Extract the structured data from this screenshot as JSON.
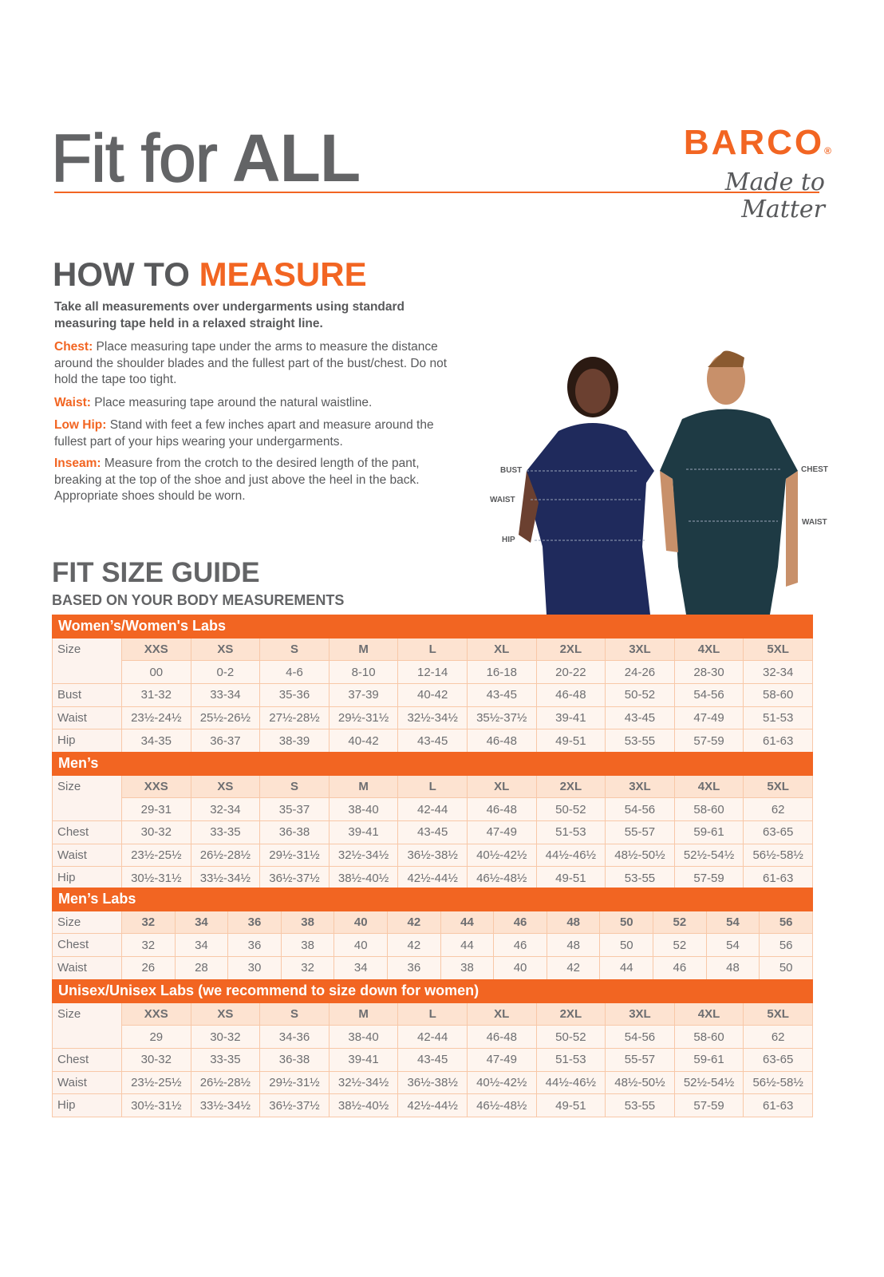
{
  "header": {
    "title_light": "Fit for",
    "title_bold": "ALL",
    "brand": "BARCO",
    "brand_mark": "®",
    "tagline": "Made to Matter"
  },
  "measure": {
    "heading_a": "HOW TO",
    "heading_b": "MEASURE",
    "intro": "Take all measurements over undergarments using standard measuring tape held in a relaxed straight line.",
    "items": [
      {
        "term": "Chest:",
        "text": "Place measuring tape under the arms to measure the distance around the shoulder blades and the fullest part of the bust/chest. Do not hold the tape too tight."
      },
      {
        "term": "Waist:",
        "text": "Place measuring tape around the natural waistline."
      },
      {
        "term": "Low Hip:",
        "text": "Stand with feet a few inches apart and measure around the fullest part of your hips wearing your undergarments."
      },
      {
        "term": "Inseam:",
        "text": "Measure from the crotch to the desired length of the pant, breaking at the top of the shoe and just above the heel in the back. Appropriate shoes should be worn."
      }
    ]
  },
  "figure_labels": {
    "bust": "BUST",
    "waist_w": "WAIST",
    "hip": "HIP",
    "chest": "CHEST",
    "waist_m": "WAIST"
  },
  "guide": {
    "heading": "FIT SIZE GUIDE",
    "subheading": "BASED ON YOUR BODY MEASUREMENTS"
  },
  "colors": {
    "accent": "#f26522",
    "text": "#58595b"
  },
  "tables": [
    {
      "title": "Women’s/Women's Labs",
      "size_label": "Size",
      "sizes": [
        "XXS",
        "XS",
        "S",
        "M",
        "L",
        "XL",
        "2XL",
        "3XL",
        "4XL",
        "5XL"
      ],
      "alt": [
        "00",
        "0-2",
        "4-6",
        "8-10",
        "12-14",
        "16-18",
        "20-22",
        "24-26",
        "28-30",
        "32-34"
      ],
      "rows": [
        {
          "label": "Bust",
          "values": [
            "31-32",
            "33-34",
            "35-36",
            "37-39",
            "40-42",
            "43-45",
            "46-48",
            "50-52",
            "54-56",
            "58-60"
          ]
        },
        {
          "label": "Waist",
          "values": [
            "23½-24½",
            "25½-26½",
            "27½-28½",
            "29½-31½",
            "32½-34½",
            "35½-37½",
            "39-41",
            "43-45",
            "47-49",
            "51-53"
          ]
        },
        {
          "label": "Hip",
          "values": [
            "34-35",
            "36-37",
            "38-39",
            "40-42",
            "43-45",
            "46-48",
            "49-51",
            "53-55",
            "57-59",
            "61-63"
          ]
        }
      ]
    },
    {
      "title": "Men’s",
      "size_label": "Size",
      "sizes": [
        "XXS",
        "XS",
        "S",
        "M",
        "L",
        "XL",
        "2XL",
        "3XL",
        "4XL",
        "5XL"
      ],
      "alt": [
        "29-31",
        "32-34",
        "35-37",
        "38-40",
        "42-44",
        "46-48",
        "50-52",
        "54-56",
        "58-60",
        "62"
      ],
      "rows": [
        {
          "label": "Chest",
          "values": [
            "30-32",
            "33-35",
            "36-38",
            "39-41",
            "43-45",
            "47-49",
            "51-53",
            "55-57",
            "59-61",
            "63-65"
          ]
        },
        {
          "label": "Waist",
          "values": [
            "23½-25½",
            "26½-28½",
            "29½-31½",
            "32½-34½",
            "36½-38½",
            "40½-42½",
            "44½-46½",
            "48½-50½",
            "52½-54½",
            "56½-58½"
          ]
        },
        {
          "label": "Hip",
          "values": [
            "30½-31½",
            "33½-34½",
            "36½-37½",
            "38½-40½",
            "42½-44½",
            "46½-48½",
            "49-51",
            "53-55",
            "57-59",
            "61-63"
          ]
        }
      ]
    },
    {
      "title": "Men’s Labs",
      "size_label": "Size",
      "sizes": [
        "32",
        "34",
        "36",
        "38",
        "40",
        "42",
        "44",
        "46",
        "48",
        "50",
        "52",
        "54",
        "56"
      ],
      "rows": [
        {
          "label": "Chest",
          "values": [
            "32",
            "34",
            "36",
            "38",
            "40",
            "42",
            "44",
            "46",
            "48",
            "50",
            "52",
            "54",
            "56"
          ]
        },
        {
          "label": "Waist",
          "values": [
            "26",
            "28",
            "30",
            "32",
            "34",
            "36",
            "38",
            "40",
            "42",
            "44",
            "46",
            "48",
            "50"
          ]
        }
      ]
    },
    {
      "title": "Unisex/Unisex Labs (we recommend to size down for women)",
      "size_label": "Size",
      "sizes": [
        "XXS",
        "XS",
        "S",
        "M",
        "L",
        "XL",
        "2XL",
        "3XL",
        "4XL",
        "5XL"
      ],
      "alt": [
        "29",
        "30-32",
        "34-36",
        "38-40",
        "42-44",
        "46-48",
        "50-52",
        "54-56",
        "58-60",
        "62"
      ],
      "rows": [
        {
          "label": "Chest",
          "values": [
            "30-32",
            "33-35",
            "36-38",
            "39-41",
            "43-45",
            "47-49",
            "51-53",
            "55-57",
            "59-61",
            "63-65"
          ]
        },
        {
          "label": "Waist",
          "values": [
            "23½-25½",
            "26½-28½",
            "29½-31½",
            "32½-34½",
            "36½-38½",
            "40½-42½",
            "44½-46½",
            "48½-50½",
            "52½-54½",
            "56½-58½"
          ]
        },
        {
          "label": "Hip",
          "values": [
            "30½-31½",
            "33½-34½",
            "36½-37½",
            "38½-40½",
            "42½-44½",
            "46½-48½",
            "49-51",
            "53-55",
            "57-59",
            "61-63"
          ]
        }
      ]
    }
  ]
}
